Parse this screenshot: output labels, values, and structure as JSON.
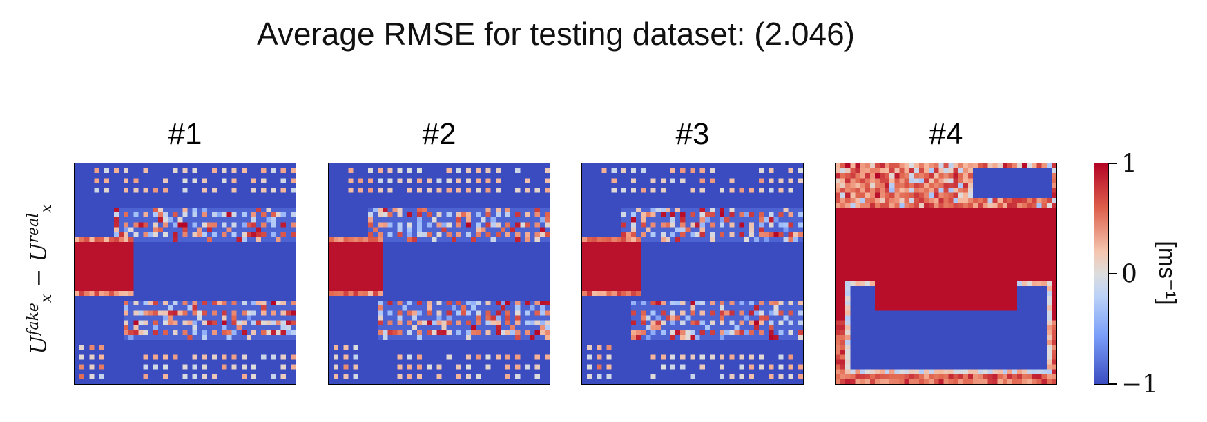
{
  "title": "Average RMSE for testing dataset: (2.046)",
  "row_label": {
    "base": "U",
    "sup_fake": "fake",
    "sub": "x",
    "minus": " − ",
    "sup_real": "real"
  },
  "colorbar": {
    "ticks": [
      "1",
      "0",
      "−1"
    ],
    "unit": "[ms⁻¹]",
    "colormap": "coolwarm"
  },
  "colors": {
    "min": "#3b4cc0",
    "mid": "#dddddd",
    "max": "#b40426"
  },
  "chart_data": {
    "type": "heatmap",
    "title": "Average RMSE for testing dataset: (2.046)",
    "value_range": [
      -1,
      1
    ],
    "grid_size": [
      45,
      45
    ],
    "panels": [
      {
        "title": "#1",
        "pattern": "saturated positive inlet band on left, negative core region, scattered dotted positive/negative speckle above and below core"
      },
      {
        "title": "#2",
        "pattern": "saturated positive inlet band on left, negative core region, scattered dotted speckle above and below core"
      },
      {
        "title": "#3",
        "pattern": "saturated positive inlet band on left, negative core region, scattered dotted speckle above and below core"
      },
      {
        "title": "#4",
        "pattern": "large saturated positive band across middle, negative pockets top-right and bottom, mixed border"
      }
    ]
  }
}
